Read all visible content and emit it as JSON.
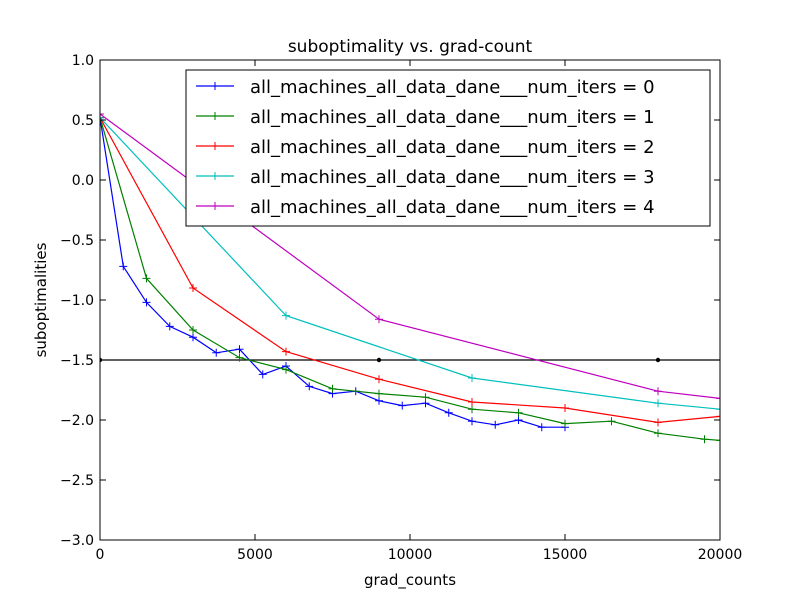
{
  "chart_data": {
    "type": "line",
    "title": "suboptimality vs. grad-count",
    "xlabel": "grad_counts",
    "ylabel": "suboptimalities",
    "xlim": [
      0,
      20000
    ],
    "ylim": [
      -3.0,
      1.0
    ],
    "xticks": [
      0,
      5000,
      10000,
      15000,
      20000
    ],
    "xtick_labels": [
      "0",
      "5000",
      "10000",
      "15000",
      "20000"
    ],
    "yticks": [
      -3.0,
      -2.5,
      -2.0,
      -1.5,
      -1.0,
      -0.5,
      0.0,
      0.5,
      1.0
    ],
    "ytick_labels": [
      "−3.0",
      "−2.5",
      "−2.0",
      "−1.5",
      "−1.0",
      "−0.5",
      "0.0",
      "0.5",
      "1.0"
    ],
    "grid": false,
    "legend_position": "top-right",
    "marker": "+",
    "reference_line": {
      "y": -1.5,
      "color": "#000000",
      "dot_x": [
        0,
        9000,
        18000
      ]
    },
    "series": [
      {
        "name": "all_machines_all_data_dane___num_iters = 0",
        "color": "#0000ff",
        "x": [
          0,
          750,
          1500,
          2250,
          3000,
          3750,
          4500,
          5250,
          6000,
          6750,
          7500,
          8250,
          9000,
          9750,
          10500,
          11250,
          12000,
          12750,
          13500,
          14250,
          15000
        ],
        "y": [
          0.52,
          -0.72,
          -1.02,
          -1.22,
          -1.31,
          -1.44,
          -1.41,
          -1.62,
          -1.55,
          -1.72,
          -1.78,
          -1.76,
          -1.84,
          -1.88,
          -1.86,
          -1.94,
          -2.01,
          -2.04,
          -2.0,
          -2.06,
          -2.06
        ]
      },
      {
        "name": "all_machines_all_data_dane___num_iters = 1",
        "color": "#008000",
        "x": [
          0,
          1500,
          3000,
          4500,
          6000,
          7500,
          9000,
          10500,
          12000,
          13500,
          15000,
          16500,
          18000,
          19500,
          20000
        ],
        "y": [
          0.52,
          -0.82,
          -1.25,
          -1.48,
          -1.58,
          -1.74,
          -1.78,
          -1.81,
          -1.91,
          -1.94,
          -2.03,
          -2.01,
          -2.11,
          -2.16,
          -2.17
        ]
      },
      {
        "name": "all_machines_all_data_dane___num_iters = 2",
        "color": "#ff0000",
        "x": [
          0,
          3000,
          6000,
          9000,
          12000,
          15000,
          18000,
          20000
        ],
        "y": [
          0.52,
          -0.9,
          -1.43,
          -1.66,
          -1.85,
          -1.9,
          -2.02,
          -1.97
        ]
      },
      {
        "name": "all_machines_all_data_dane___num_iters = 3",
        "color": "#00bfbf",
        "x": [
          0,
          6000,
          12000,
          18000,
          20000
        ],
        "y": [
          0.52,
          -1.13,
          -1.65,
          -1.86,
          -1.91
        ]
      },
      {
        "name": "all_machines_all_data_dane___num_iters = 4",
        "color": "#bf00bf",
        "x": [
          0,
          9000,
          18000,
          20000
        ],
        "y": [
          0.55,
          -1.16,
          -1.76,
          -1.82
        ]
      }
    ]
  }
}
